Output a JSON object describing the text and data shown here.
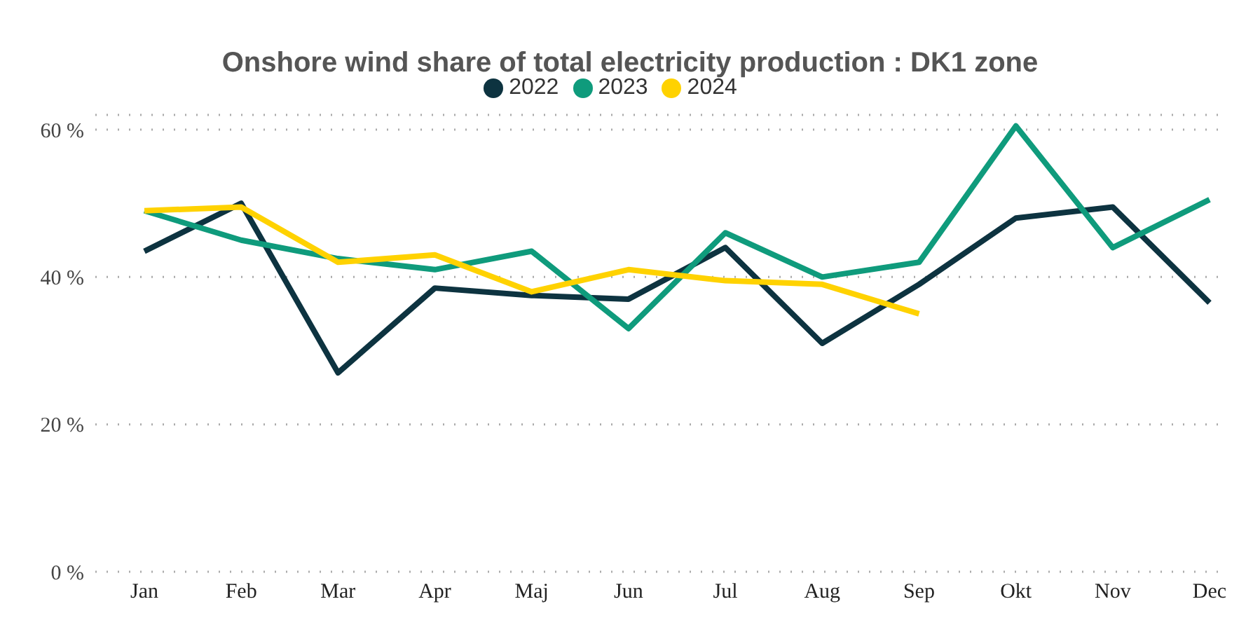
{
  "chart_data": {
    "type": "line",
    "title": "Onshore wind share of total electricity production : DK1 zone",
    "categories": [
      "Jan",
      "Feb",
      "Mar",
      "Apr",
      "Maj",
      "Jun",
      "Jul",
      "Aug",
      "Sep",
      "Okt",
      "Nov",
      "Dec"
    ],
    "series": [
      {
        "name": "2022",
        "color": "#0d3340",
        "values": [
          43.5,
          50,
          27,
          38.5,
          37.5,
          37,
          44,
          31,
          39,
          48,
          49.5,
          36.5
        ]
      },
      {
        "name": "2023",
        "color": "#0f9b7c",
        "values": [
          49,
          45,
          42.5,
          41,
          43.5,
          33,
          46,
          40,
          42,
          60.5,
          44,
          50.5
        ]
      },
      {
        "name": "2024",
        "color": "#ffd200",
        "values": [
          49,
          49.5,
          42,
          43,
          38,
          41,
          39.5,
          39,
          35,
          null,
          null,
          null
        ]
      }
    ],
    "ylim": [
      0,
      62
    ],
    "yticks": [
      {
        "value": 0,
        "label": "0 %"
      },
      {
        "value": 20,
        "label": "20 %"
      },
      {
        "value": 40,
        "label": "40 %"
      },
      {
        "value": 60,
        "label": "60 %"
      }
    ],
    "grid": "y",
    "legend": "top",
    "marker": "none",
    "line_style": "solid"
  }
}
